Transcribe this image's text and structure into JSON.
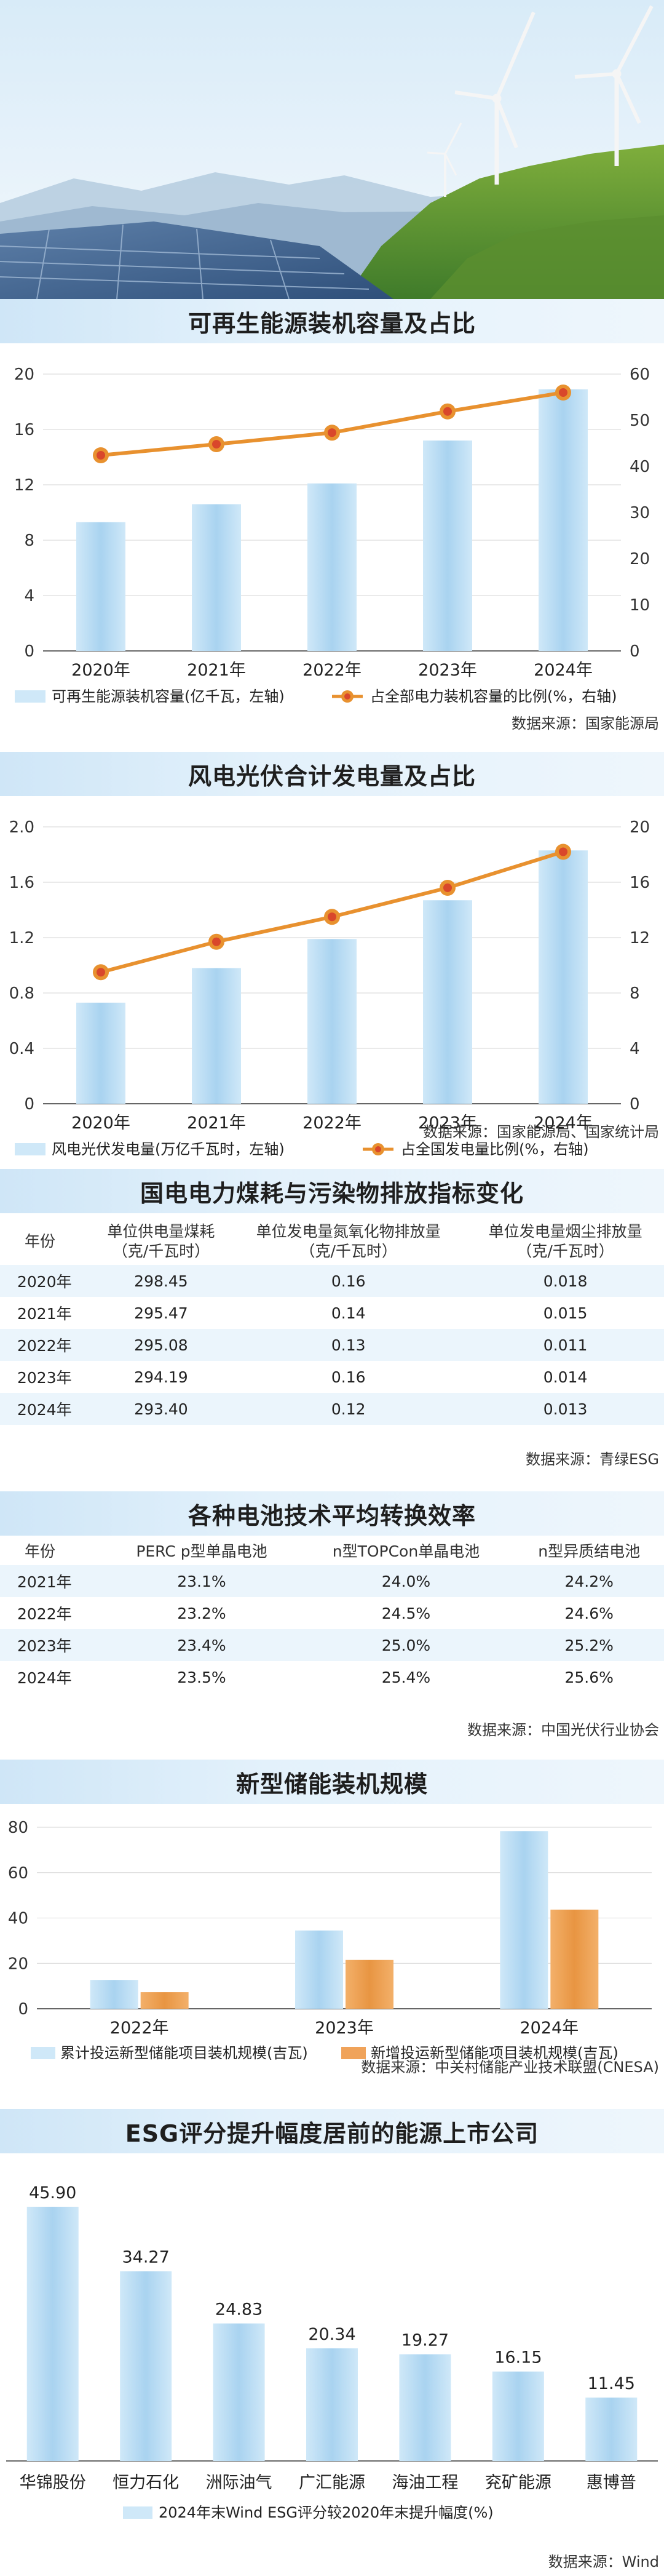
{
  "sections": {
    "renewable": {
      "title": "可再生能源装机容量及占比",
      "source": "数据来源：国家能源局"
    },
    "windsolar": {
      "title": "风电光伏合计发电量及占比",
      "source": "数据来源：国家能源局、国家统计局"
    },
    "coal": {
      "title": "国电电力煤耗与污染物排放指标变化",
      "headers": [
        "年份",
        "单位供电量煤耗\n（克/千瓦时）",
        "单位发电量氮氧化物排放量\n（克/千瓦时）",
        "单位发电量烟尘排放量\n（克/千瓦时）"
      ],
      "rows": [
        [
          "2020年",
          "298.45",
          "0.16",
          "0.018"
        ],
        [
          "2021年",
          "295.47",
          "0.14",
          "0.015"
        ],
        [
          "2022年",
          "295.08",
          "0.13",
          "0.011"
        ],
        [
          "2023年",
          "294.19",
          "0.16",
          "0.014"
        ],
        [
          "2024年",
          "293.40",
          "0.12",
          "0.013"
        ]
      ],
      "source": "数据来源：青绿ESG"
    },
    "battery": {
      "title": "各种电池技术平均转换效率",
      "headers": [
        "年份",
        "PERC p型单晶电池",
        "n型TOPCon单晶电池",
        "n型异质结电池"
      ],
      "rows": [
        [
          "2021年",
          "23.1%",
          "24.0%",
          "24.2%"
        ],
        [
          "2022年",
          "23.2%",
          "24.5%",
          "24.6%"
        ],
        [
          "2023年",
          "23.4%",
          "25.0%",
          "25.2%"
        ],
        [
          "2024年",
          "23.5%",
          "25.4%",
          "25.6%"
        ]
      ],
      "source": "数据来源：中国光伏行业协会"
    },
    "storage": {
      "title": "新型储能装机规模",
      "source": "数据来源：中关村储能产业技术联盟(CNESA)"
    },
    "esg": {
      "title": "ESG评分提升幅度居前的能源上市公司",
      "source": "数据来源：Wind"
    }
  },
  "chart_data": [
    {
      "type": "bar+line",
      "title": "可再生能源装机容量及占比",
      "categories": [
        "2020年",
        "2021年",
        "2022年",
        "2023年",
        "2024年"
      ],
      "series": [
        {
          "name": "可再生能源装机容量(亿千瓦，左轴)",
          "type": "bar",
          "axis": "left",
          "values": [
            9.3,
            10.6,
            12.1,
            15.2,
            18.9
          ],
          "color": "#bfe0f5"
        },
        {
          "name": "占全部电力装机容量的比例(%，右轴)",
          "type": "line",
          "axis": "right",
          "values": [
            42.4,
            44.8,
            47.3,
            51.9,
            56.0
          ],
          "color": "#e8912f"
        }
      ],
      "yleft": {
        "range": [
          0,
          20
        ],
        "ticks": [
          "0",
          "4",
          "8",
          "12",
          "16",
          "20"
        ]
      },
      "yright": {
        "range": [
          0,
          60
        ],
        "ticks": [
          "0",
          "10",
          "20",
          "30",
          "40",
          "50",
          "60"
        ]
      },
      "legend": "bottom"
    },
    {
      "type": "bar+line",
      "title": "风电光伏合计发电量及占比",
      "categories": [
        "2020年",
        "2021年",
        "2022年",
        "2023年",
        "2024年"
      ],
      "series": [
        {
          "name": "风电光伏发电量(万亿千瓦时，左轴)",
          "type": "bar",
          "axis": "left",
          "values": [
            0.73,
            0.98,
            1.19,
            1.47,
            1.83
          ],
          "color": "#bfe0f5"
        },
        {
          "name": "占全国发电量比例(%，右轴)",
          "type": "line",
          "axis": "right",
          "values": [
            9.5,
            11.7,
            13.5,
            15.6,
            18.2
          ],
          "color": "#e8912f"
        }
      ],
      "yleft": {
        "range": [
          0,
          2.0
        ],
        "ticks": [
          "0",
          "0.4",
          "0.8",
          "1.2",
          "1.6",
          "2.0"
        ]
      },
      "yright": {
        "range": [
          0,
          20
        ],
        "ticks": [
          "0",
          "4",
          "8",
          "12",
          "16",
          "20"
        ]
      },
      "legend": "bottom"
    },
    {
      "type": "bar",
      "title": "新型储能装机规模",
      "categories": [
        "2022年",
        "2023年",
        "2024年"
      ],
      "series": [
        {
          "name": "累计投运新型储能项目装机规模(吉瓦)",
          "values": [
            12.7,
            34.5,
            78.3
          ],
          "color": "#bfe0f5"
        },
        {
          "name": "新增投运新型储能项目装机规模(吉瓦)",
          "values": [
            7.3,
            21.5,
            43.7
          ],
          "color": "#f0a35a"
        }
      ],
      "ylim": [
        0,
        80
      ],
      "ticks": [
        "0",
        "20",
        "40",
        "60",
        "80"
      ],
      "legend": "bottom"
    },
    {
      "type": "bar",
      "title": "ESG评分提升幅度居前的能源上市公司",
      "categories": [
        "华锦股份",
        "恒力石化",
        "洲际油气",
        "广汇能源",
        "海油工程",
        "兖矿能源",
        "惠博普"
      ],
      "series": [
        {
          "name": "2024年末Wind ESG评分较2020年末提升幅度(%)",
          "values": [
            45.9,
            34.27,
            24.83,
            20.34,
            19.27,
            16.15,
            11.45
          ],
          "labels": [
            "45.90",
            "34.27",
            "24.83",
            "20.34",
            "19.27",
            "16.15",
            "11.45"
          ],
          "color": "#bfe0f5"
        }
      ],
      "ylim": [
        0,
        50
      ],
      "legend": "bottom"
    }
  ]
}
